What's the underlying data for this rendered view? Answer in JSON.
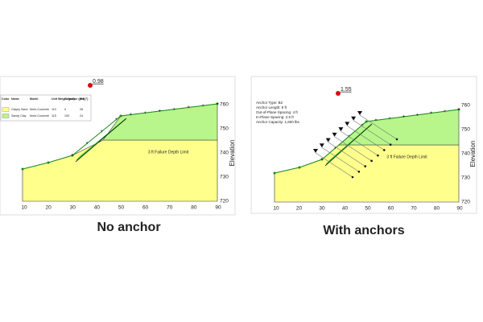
{
  "panels": [
    {
      "factor_of_safety": "0.98",
      "x_ticks": [
        10,
        20,
        30,
        40,
        50,
        60,
        70,
        80,
        90
      ],
      "y_ticks": [
        720,
        730,
        740,
        750,
        760
      ],
      "y_axis_label": "Elevation",
      "depth_limit_label": "3 ft Failure Depth Limit",
      "material_table": {
        "header": [
          "Color",
          "Name",
          "Model",
          "Unit Weight (pcf)",
          "Cohesion (psf)",
          "Phi (°)"
        ],
        "rows": [
          [
            "Clayey Sand",
            "Mohr-Coulomb",
            "110",
            "0",
            "28"
          ],
          [
            "Sandy Clay",
            "Mohr-Coulomb",
            "115",
            "100",
            "24"
          ]
        ]
      },
      "caption": "No anchor"
    },
    {
      "factor_of_safety": "1.55",
      "x_ticks": [
        10,
        20,
        30,
        40,
        50,
        60,
        70,
        80,
        90
      ],
      "y_ticks": [
        720,
        730,
        740,
        750,
        760
      ],
      "y_axis_label": "Elevation",
      "depth_limit_label": "3 ft Failure Depth Limit",
      "anchor_properties": [
        "Anchor Type: B2",
        "Anchor Length: 9 ft",
        "Out-of-Plane Spacing: 4 ft",
        "In-Plane Spacing: 2.5 ft",
        "Anchor Capacity: 1,600 lbs"
      ],
      "caption": "With anchors"
    }
  ]
}
